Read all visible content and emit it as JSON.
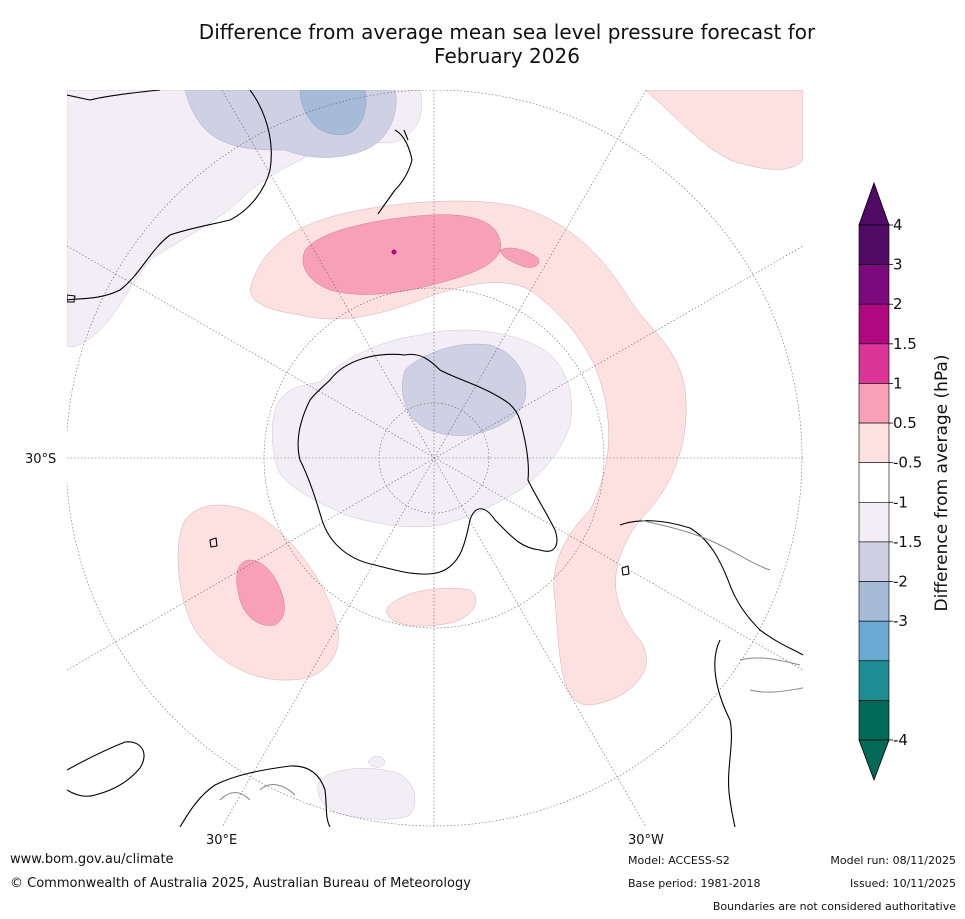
{
  "title": {
    "line1": "Difference from average mean sea level pressure forecast for",
    "line2": "February 2026"
  },
  "map": {
    "lat_label": "30°S",
    "lon_label_east": "30°E",
    "lon_label_west": "30°W",
    "projection": "south-polar stereographic",
    "features": {
      "positive_anomaly_bands": [
        "Southern Ocean south of Australia/New Zealand",
        "South Atlantic band west of Africa",
        "South Atlantic east of South America",
        "North of Antarctica (Atlantic sector)"
      ],
      "negative_anomaly_areas": [
        "East Antarctica interior",
        "Tasman Sea / Australia"
      ]
    }
  },
  "colorbar": {
    "label": "Difference from average (hPa)",
    "ticks": [
      "4",
      "3",
      "2",
      "1.5",
      "1",
      "0.5",
      "-0.5",
      "-1",
      "-1.5",
      "-2",
      "-3",
      "-4"
    ],
    "colors": [
      "#510a66",
      "#7c0a7c",
      "#b0087f",
      "#dc3497",
      "#f8a0b8",
      "#fde0e0",
      "#ffffff",
      "#f3eef5",
      "#d0d0e4",
      "#a6bbd8",
      "#6aaad2",
      "#1e8c93",
      "#006a56"
    ],
    "top_arrow_color": "#510a66",
    "bottom_arrow_color": "#006a56"
  },
  "footer": {
    "website": "www.bom.gov.au/climate",
    "copyright": "© Commonwealth of Australia 2025, Australian Bureau of Meteorology",
    "model": "Model: ACCESS-S2",
    "base_period": "Base period: 1981-2018",
    "model_run": "Model run: 08/11/2025",
    "issued": "Issued: 10/11/2025",
    "disclaimer": "Boundaries are not considered authoritative"
  }
}
